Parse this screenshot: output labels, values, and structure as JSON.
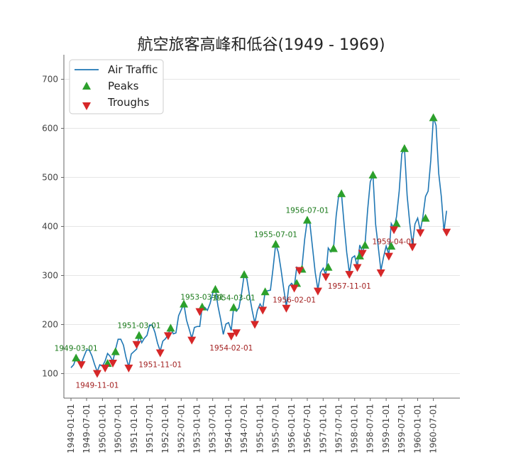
{
  "chart_data": {
    "type": "line",
    "title": "航空旅客高峰和低谷(1949 - 1969)",
    "xlabel": "",
    "ylabel": "",
    "x_start": "1949-01-01",
    "x_end": "1961-01-01",
    "x_frequency": "monthly",
    "ylim": [
      50,
      750
    ],
    "yticks": [
      100,
      200,
      300,
      400,
      500,
      600,
      700
    ],
    "xticks": [
      "1949-01-01",
      "1949-07-01",
      "1950-01-01",
      "1950-07-01",
      "1951-01-01",
      "1951-07-01",
      "1952-01-01",
      "1952-07-01",
      "1953-01-01",
      "1953-07-01",
      "1954-01-01",
      "1954-07-01",
      "1955-01-01",
      "1955-07-01",
      "1956-01-01",
      "1956-07-01",
      "1957-01-01",
      "1957-07-01",
      "1958-01-01",
      "1958-07-01",
      "1959-01-01",
      "1959-07-01",
      "1960-01-01",
      "1960-07-01"
    ],
    "grid": {
      "y": true,
      "x": false
    },
    "legend": {
      "placement": "top-left",
      "entries": [
        "Air Traffic",
        "Peaks",
        "Troughs"
      ]
    },
    "colors": {
      "line": "#1f77b4",
      "peaks": "#2ca02c",
      "troughs": "#d62728"
    },
    "series": [
      {
        "name": "Air Traffic",
        "x": [
          "1949-01-01",
          "1949-02-01",
          "1949-03-01",
          "1949-04-01",
          "1949-05-01",
          "1949-06-01",
          "1949-07-01",
          "1949-08-01",
          "1949-09-01",
          "1949-10-01",
          "1949-11-01",
          "1949-12-01",
          "1950-01-01",
          "1950-02-01",
          "1950-03-01",
          "1950-04-01",
          "1950-05-01",
          "1950-06-01",
          "1950-07-01",
          "1950-08-01",
          "1950-09-01",
          "1950-10-01",
          "1950-11-01",
          "1950-12-01",
          "1951-01-01",
          "1951-02-01",
          "1951-03-01",
          "1951-04-01",
          "1951-05-01",
          "1951-06-01",
          "1951-07-01",
          "1951-08-01",
          "1951-09-01",
          "1951-10-01",
          "1951-11-01",
          "1951-12-01",
          "1952-01-01",
          "1952-02-01",
          "1952-03-01",
          "1952-04-01",
          "1952-05-01",
          "1952-06-01",
          "1952-07-01",
          "1952-08-01",
          "1952-09-01",
          "1952-10-01",
          "1952-11-01",
          "1952-12-01",
          "1953-01-01",
          "1953-02-01",
          "1953-03-01",
          "1953-04-01",
          "1953-05-01",
          "1953-06-01",
          "1953-07-01",
          "1953-08-01",
          "1953-09-01",
          "1953-10-01",
          "1953-11-01",
          "1953-12-01",
          "1954-01-01",
          "1954-02-01",
          "1954-03-01",
          "1954-04-01",
          "1954-05-01",
          "1954-06-01",
          "1954-07-01",
          "1954-08-01",
          "1954-09-01",
          "1954-10-01",
          "1954-11-01",
          "1954-12-01",
          "1955-01-01",
          "1955-02-01",
          "1955-03-01",
          "1955-04-01",
          "1955-05-01",
          "1955-06-01",
          "1955-07-01",
          "1955-08-01",
          "1955-09-01",
          "1955-10-01",
          "1955-11-01",
          "1955-12-01",
          "1956-01-01",
          "1956-02-01",
          "1956-03-01",
          "1956-04-01",
          "1956-05-01",
          "1956-06-01",
          "1956-07-01",
          "1956-08-01",
          "1956-09-01",
          "1956-10-01",
          "1956-11-01",
          "1956-12-01",
          "1957-01-01",
          "1957-02-01",
          "1957-03-01",
          "1957-04-01",
          "1957-05-01",
          "1957-06-01",
          "1957-07-01",
          "1957-08-01",
          "1957-09-01",
          "1957-10-01",
          "1957-11-01",
          "1957-12-01",
          "1958-01-01",
          "1958-02-01",
          "1958-03-01",
          "1958-04-01",
          "1958-05-01",
          "1958-06-01",
          "1958-07-01",
          "1958-08-01",
          "1958-09-01",
          "1958-10-01",
          "1958-11-01",
          "1958-12-01",
          "1959-01-01",
          "1959-02-01",
          "1959-03-01",
          "1959-04-01",
          "1959-05-01",
          "1959-06-01",
          "1959-07-01",
          "1959-08-01",
          "1959-09-01",
          "1959-10-01",
          "1959-11-01",
          "1959-12-01",
          "1960-01-01",
          "1960-02-01",
          "1960-03-01",
          "1960-04-01",
          "1960-05-01",
          "1960-06-01",
          "1960-07-01",
          "1960-08-01",
          "1960-09-01",
          "1960-10-01",
          "1960-11-01",
          "1960-12-01"
        ],
        "values": [
          112,
          118,
          132,
          129,
          121,
          135,
          148,
          148,
          136,
          119,
          104,
          118,
          115,
          126,
          141,
          135,
          125,
          149,
          170,
          170,
          158,
          133,
          114,
          140,
          145,
          150,
          178,
          163,
          172,
          178,
          199,
          199,
          184,
          162,
          146,
          166,
          171,
          180,
          193,
          181,
          183,
          218,
          230,
          242,
          209,
          191,
          172,
          194,
          196,
          196,
          236,
          235,
          229,
          243,
          264,
          272,
          237,
          211,
          180,
          201,
          204,
          188,
          235,
          227,
          234,
          264,
          302,
          293,
          259,
          229,
          203,
          229,
          242,
          233,
          267,
          269,
          270,
          315,
          364,
          347,
          312,
          274,
          237,
          278,
          284,
          277,
          317,
          313,
          318,
          374,
          413,
          405,
          355,
          306,
          271,
          306,
          315,
          301,
          356,
          348,
          355,
          422,
          465,
          467,
          404,
          347,
          305,
          336,
          340,
          318,
          362,
          348,
          363,
          435,
          491,
          505,
          404,
          359,
          310,
          337,
          360,
          342,
          406,
          396,
          420,
          472,
          548,
          559,
          463,
          407,
          362,
          405,
          417,
          391,
          419,
          461,
          472,
          535,
          622,
          606,
          508,
          461,
          390,
          432
        ]
      },
      {
        "name": "Peaks",
        "x": [
          "1949-03-01",
          "1950-03-01",
          "1950-06-01",
          "1951-03-01",
          "1952-03-01",
          "1952-08-01",
          "1953-03-01",
          "1953-08-01",
          "1954-03-01",
          "1954-07-01",
          "1955-03-01",
          "1955-07-01",
          "1956-03-01",
          "1956-05-01",
          "1956-07-01",
          "1957-03-01",
          "1957-05-01",
          "1957-08-01",
          "1958-03-01",
          "1958-05-01",
          "1958-08-01",
          "1959-03-01",
          "1959-05-01",
          "1959-08-01",
          "1960-04-01",
          "1960-07-01"
        ],
        "values": [
          132,
          121,
          145,
          178,
          193,
          242,
          236,
          272,
          235,
          302,
          267,
          364,
          284,
          313,
          413,
          317,
          355,
          467,
          340,
          362,
          505,
          360,
          406,
          559,
          417,
          622
        ]
      },
      {
        "name": "Troughs",
        "x": [
          "1949-05-01",
          "1949-11-01",
          "1950-02-01",
          "1950-05-01",
          "1950-11-01",
          "1951-02-01",
          "1951-11-01",
          "1952-02-01",
          "1952-11-01",
          "1953-02-01",
          "1954-02-01",
          "1954-04-01",
          "1954-11-01",
          "1955-02-01",
          "1955-11-01",
          "1956-02-01",
          "1956-04-01",
          "1956-11-01",
          "1957-02-01",
          "1957-11-01",
          "1958-02-01",
          "1958-04-01",
          "1958-11-01",
          "1959-02-01",
          "1959-04-01",
          "1959-11-01",
          "1960-02-01",
          "1960-12-01"
        ],
        "values": [
          118,
          100,
          111,
          121,
          111,
          159,
          142,
          177,
          168,
          226,
          176,
          183,
          200,
          229,
          233,
          274,
          310,
          268,
          297,
          302,
          316,
          345,
          305,
          339,
          393,
          358,
          387,
          388
        ]
      }
    ],
    "annotations": [
      {
        "text": "1949-03-01",
        "date": "1949-03-01",
        "value": 132,
        "kind": "peak"
      },
      {
        "text": "1949-11-01",
        "date": "1949-11-01",
        "value": 100,
        "kind": "trough"
      },
      {
        "text": "1951-03-01",
        "date": "1951-03-01",
        "value": 178,
        "kind": "peak"
      },
      {
        "text": "1951-11-01",
        "date": "1951-11-01",
        "value": 142,
        "kind": "trough"
      },
      {
        "text": "1953-03-01",
        "date": "1953-03-01",
        "value": 236,
        "kind": "peak"
      },
      {
        "text": "1954-03-01",
        "date": "1954-03-01",
        "value": 235,
        "kind": "peak"
      },
      {
        "text": "1954-02-01",
        "date": "1954-02-01",
        "value": 176,
        "kind": "trough"
      },
      {
        "text": "1955-07-01",
        "date": "1955-07-01",
        "value": 364,
        "kind": "peak"
      },
      {
        "text": "1956-02-01",
        "date": "1956-02-01",
        "value": 274,
        "kind": "trough"
      },
      {
        "text": "1956-07-01",
        "date": "1956-07-01",
        "value": 413,
        "kind": "peak"
      },
      {
        "text": "1957-11-01",
        "date": "1957-11-01",
        "value": 302,
        "kind": "trough"
      },
      {
        "text": "1959-04-01",
        "date": "1959-04-01",
        "value": 393,
        "kind": "trough"
      }
    ]
  }
}
